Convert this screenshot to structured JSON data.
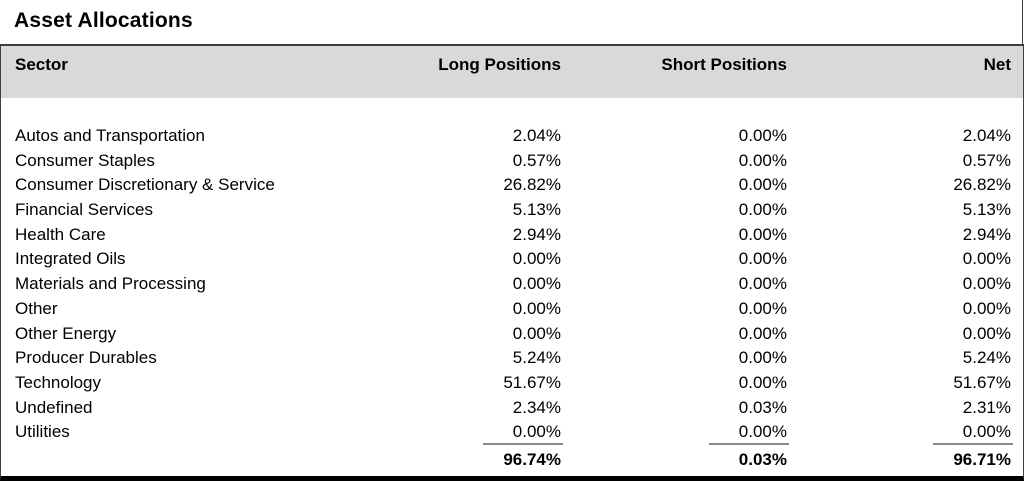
{
  "title": "Asset Allocations",
  "table": {
    "columns": [
      "Sector",
      "Long Positions",
      "Short Positions",
      "Net"
    ],
    "rows": [
      {
        "sector": "Autos and Transportation",
        "long": "2.04%",
        "short": "0.00%",
        "net": "2.04%"
      },
      {
        "sector": "Consumer Staples",
        "long": "0.57%",
        "short": "0.00%",
        "net": "0.57%"
      },
      {
        "sector": "Consumer Discretionary & Service",
        "long": "26.82%",
        "short": "0.00%",
        "net": "26.82%"
      },
      {
        "sector": "Financial Services",
        "long": "5.13%",
        "short": "0.00%",
        "net": "5.13%"
      },
      {
        "sector": "Health Care",
        "long": "2.94%",
        "short": "0.00%",
        "net": "2.94%"
      },
      {
        "sector": "Integrated Oils",
        "long": "0.00%",
        "short": "0.00%",
        "net": "0.00%"
      },
      {
        "sector": "Materials and Processing",
        "long": "0.00%",
        "short": "0.00%",
        "net": "0.00%"
      },
      {
        "sector": "Other",
        "long": "0.00%",
        "short": "0.00%",
        "net": "0.00%"
      },
      {
        "sector": "Other Energy",
        "long": "0.00%",
        "short": "0.00%",
        "net": "0.00%"
      },
      {
        "sector": "Producer Durables",
        "long": "5.24%",
        "short": "0.00%",
        "net": "5.24%"
      },
      {
        "sector": "Technology",
        "long": "51.67%",
        "short": "0.00%",
        "net": "51.67%"
      },
      {
        "sector": "Undefined",
        "long": "2.34%",
        "short": "0.03%",
        "net": "2.31%"
      },
      {
        "sector": "Utilities",
        "long": "0.00%",
        "short": "0.00%",
        "net": "0.00%"
      }
    ],
    "totals": {
      "long": "96.74%",
      "short": "0.03%",
      "net": "96.71%"
    }
  },
  "colors": {
    "header_bg": "#d9d9d9",
    "frame_border": "#3f3f3f",
    "bottom_border": "#000000",
    "sum_line": "#8c8c8c",
    "text": "#000000"
  }
}
